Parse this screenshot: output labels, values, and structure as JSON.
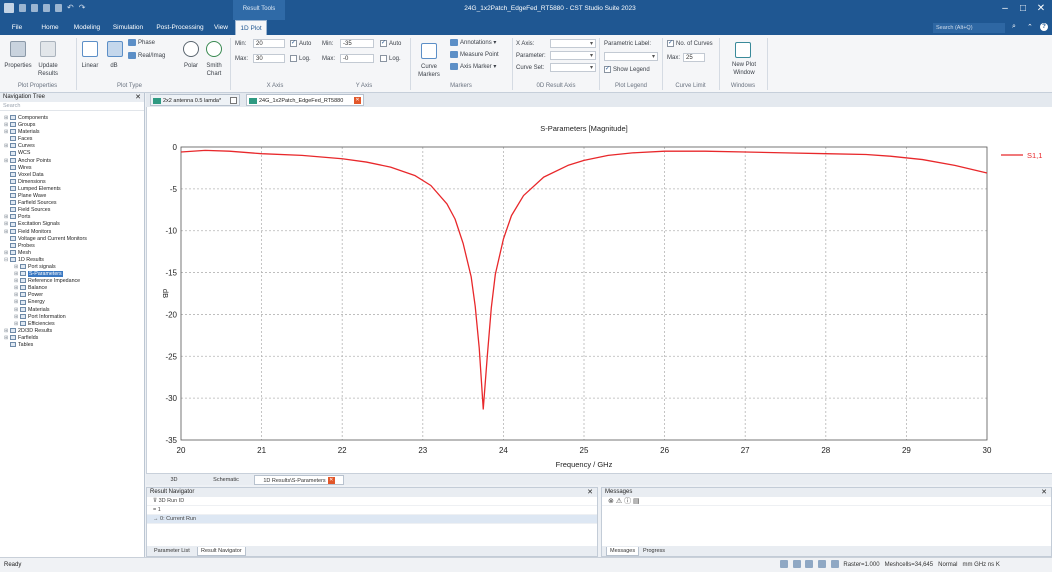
{
  "window": {
    "title": "24G_1x2Patch_EdgeFed_RT5880 - CST Studio Suite 2023",
    "context_tab": "Result Tools",
    "controls": [
      "–",
      "□",
      "✕"
    ]
  },
  "tabs": [
    "File",
    "Home",
    "Modeling",
    "Simulation",
    "Post-Processing",
    "View",
    "1D Plot"
  ],
  "search": {
    "placeholder": "Search (Alt+Q)"
  },
  "ribbon": {
    "plot_properties": {
      "properties": "Properties",
      "update_results": "Update Results",
      "label": "Plot Properties"
    },
    "plot_type": {
      "linear": "Linear",
      "db": "dB",
      "phase": "Phase",
      "real_imag": "Real/Imag",
      "polar": "Polar",
      "smith": "Smith Chart",
      "label": "Plot Type"
    },
    "x_axis": {
      "min_label": "Min:",
      "min": "20",
      "max_label": "Max:",
      "max": "30",
      "auto": "Auto",
      "log": "Log.",
      "label": "X Axis"
    },
    "y_axis": {
      "min_label": "Min:",
      "min": "-35",
      "max_label": "Max:",
      "max": "-0",
      "auto": "Auto",
      "log": "Log.",
      "label": "Y Axis"
    },
    "markers": {
      "curve_markers": "Curve Markers",
      "annotations": "Annotations",
      "measure_point": "Measure Point",
      "axis_marker": "Axis Marker",
      "label": "Markers"
    },
    "result_axis": {
      "x_axis": "X Axis:",
      "parameter": "Parameter:",
      "curve_set": "Curve Set:",
      "label": "0D Result Axis"
    },
    "plot_legend": {
      "parametric_label": "Parametric Label:",
      "show_legend": "Show Legend",
      "label": "Plot Legend"
    },
    "curve_limit": {
      "no_of_curves": "No. of Curves",
      "max_label": "Max:",
      "max": "25",
      "label": "Curve Limit"
    },
    "windows": {
      "new_plot_window": "New Plot Window",
      "label": "Windows"
    }
  },
  "nav": {
    "title": "Navigation Tree",
    "search": "Search",
    "items": [
      {
        "label": "Components",
        "level": 0,
        "exp": "+"
      },
      {
        "label": "Groups",
        "level": 0,
        "exp": "+"
      },
      {
        "label": "Materials",
        "level": 0,
        "exp": "+"
      },
      {
        "label": "Faces",
        "level": 0,
        "exp": ""
      },
      {
        "label": "Curves",
        "level": 0,
        "exp": "+"
      },
      {
        "label": "WCS",
        "level": 0,
        "exp": ""
      },
      {
        "label": "Anchor Points",
        "level": 0,
        "exp": "+"
      },
      {
        "label": "Wires",
        "level": 0,
        "exp": ""
      },
      {
        "label": "Voxel Data",
        "level": 0,
        "exp": ""
      },
      {
        "label": "Dimensions",
        "level": 0,
        "exp": ""
      },
      {
        "label": "Lumped Elements",
        "level": 0,
        "exp": ""
      },
      {
        "label": "Plane Wave",
        "level": 0,
        "exp": ""
      },
      {
        "label": "Farfield Sources",
        "level": 0,
        "exp": ""
      },
      {
        "label": "Field Sources",
        "level": 0,
        "exp": ""
      },
      {
        "label": "Ports",
        "level": 0,
        "exp": "+"
      },
      {
        "label": "Excitation Signals",
        "level": 0,
        "exp": "+"
      },
      {
        "label": "Field Monitors",
        "level": 0,
        "exp": "+"
      },
      {
        "label": "Voltage and Current Monitors",
        "level": 0,
        "exp": ""
      },
      {
        "label": "Probes",
        "level": 0,
        "exp": ""
      },
      {
        "label": "Mesh",
        "level": 0,
        "exp": "+"
      },
      {
        "label": "1D Results",
        "level": 0,
        "exp": "−"
      },
      {
        "label": "Port signals",
        "level": 1,
        "exp": "+"
      },
      {
        "label": "S-Parameters",
        "level": 1,
        "exp": "+",
        "selected": true
      },
      {
        "label": "Reference Impedance",
        "level": 1,
        "exp": "+"
      },
      {
        "label": "Balance",
        "level": 1,
        "exp": "+"
      },
      {
        "label": "Power",
        "level": 1,
        "exp": "+"
      },
      {
        "label": "Energy",
        "level": 1,
        "exp": "+"
      },
      {
        "label": "Materials",
        "level": 1,
        "exp": "+"
      },
      {
        "label": "Port Information",
        "level": 1,
        "exp": "+"
      },
      {
        "label": "Efficiencies",
        "level": 1,
        "exp": "+"
      },
      {
        "label": "2D/3D Results",
        "level": 0,
        "exp": "+"
      },
      {
        "label": "Farfields",
        "level": 0,
        "exp": "+"
      },
      {
        "label": "Tables",
        "level": 0,
        "exp": ""
      }
    ]
  },
  "doc_tabs": [
    {
      "label": "2x2 antenna 0.5 lamda*",
      "active": false
    },
    {
      "label": "24G_1x2Patch_EdgeFed_RT5880",
      "active": true
    }
  ],
  "view_tabs": [
    {
      "label": "3D",
      "active": false
    },
    {
      "label": "Schematic",
      "active": false
    },
    {
      "label": "1D Results\\S-Parameters",
      "active": true
    }
  ],
  "result_navigator": {
    "title": "Result Navigator",
    "rows": [
      "3D Run ID",
      "1",
      "0: Current Run"
    ],
    "tabs": [
      "Parameter List",
      "Result Navigator"
    ]
  },
  "messages": {
    "title": "Messages",
    "tabs": [
      "Messages",
      "Progress"
    ]
  },
  "status": {
    "ready": "Ready",
    "raster": "Raster=1.000",
    "meshcells": "Meshcells=34,645",
    "mode": "Normal",
    "units": "mm  GHz  ns  K"
  },
  "chart_data": {
    "type": "line",
    "title": "S-Parameters [Magnitude]",
    "xlabel": "Frequency / GHz",
    "ylabel": "dB",
    "xlim": [
      20,
      30
    ],
    "ylim": [
      -35,
      0
    ],
    "xticks": [
      20,
      21,
      22,
      23,
      24,
      25,
      26,
      27,
      28,
      29,
      30
    ],
    "yticks": [
      0,
      -5,
      -10,
      -15,
      -20,
      -25,
      -30,
      -35
    ],
    "grid": true,
    "legend": "top-right",
    "series": [
      {
        "name": "S1,1",
        "color": "#e8282b",
        "x": [
          20.0,
          20.3,
          20.6,
          21.0,
          21.5,
          22.0,
          22.3,
          22.6,
          22.9,
          23.1,
          23.3,
          23.4,
          23.5,
          23.6,
          23.65,
          23.7,
          23.75,
          23.8,
          23.85,
          23.9,
          24.0,
          24.1,
          24.25,
          24.5,
          24.8,
          25.0,
          25.3,
          25.6,
          26.0,
          26.5,
          27.0,
          27.5,
          28.0,
          28.5,
          28.8,
          29.2,
          29.6,
          30.0
        ],
        "values": [
          -0.6,
          -0.4,
          -0.5,
          -0.8,
          -1.0,
          -1.4,
          -1.8,
          -2.4,
          -3.4,
          -4.6,
          -6.8,
          -8.6,
          -11.5,
          -15.5,
          -19.0,
          -24.0,
          -31.3,
          -25.0,
          -19.2,
          -15.2,
          -11.0,
          -8.2,
          -5.8,
          -3.6,
          -2.2,
          -1.6,
          -1.0,
          -0.7,
          -0.5,
          -0.5,
          -0.6,
          -0.7,
          -0.8,
          -0.9,
          -1.1,
          -1.5,
          -2.2,
          -3.1
        ]
      }
    ]
  }
}
